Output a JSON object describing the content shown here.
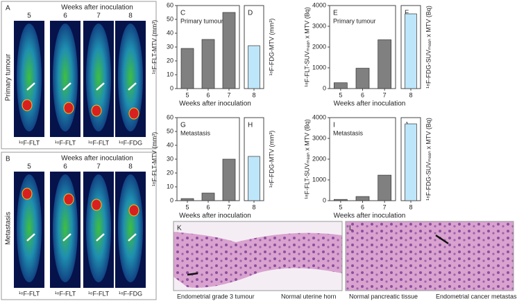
{
  "image_panels": [
    {
      "label": "A",
      "title": "Weeks after inoculation",
      "side_label": "Primary tumour",
      "weeks": [
        "5",
        "6",
        "7",
        "8"
      ],
      "tracers": [
        "¹⁸F-FLT",
        "¹⁸F-FLT",
        "¹⁸F-FLT",
        "¹⁸F-FDG"
      ]
    },
    {
      "label": "B",
      "title": "Weeks after inoculation",
      "side_label": "Metastasis",
      "weeks": [
        "5",
        "6",
        "7",
        "8"
      ],
      "tracers": [
        "¹⁸F-FLT",
        "¹⁸F-FLT",
        "¹⁸F-FLT",
        "¹⁸F-FDG"
      ]
    }
  ],
  "histology": [
    {
      "label": "K",
      "captions": [
        "Endometrial grade 3 tumour",
        "Normal uterine horn"
      ]
    },
    {
      "label": "L",
      "captions": [
        "Normal pancreatic tissue",
        "Endometrial cancer metastasis"
      ]
    }
  ],
  "chart_data": [
    {
      "type": "bar",
      "label": "C",
      "annotation": "Primary tumour",
      "ylabel": "¹⁸F-FLT-MTV (mm³)",
      "xlabel": "Weeks after inoculation",
      "categories": [
        "5",
        "6",
        "7"
      ],
      "values": [
        29,
        35.5,
        55
      ],
      "color": "#808080",
      "ylim": [
        0,
        60
      ],
      "yticks": [
        0,
        10,
        20,
        30,
        40,
        50,
        60
      ]
    },
    {
      "type": "bar",
      "label": "D",
      "ylabel": "¹⁸F-FDG-MTV (mm³)",
      "categories": [
        "8"
      ],
      "values": [
        31
      ],
      "color": "#bde6fa",
      "ylim": [
        0,
        60
      ]
    },
    {
      "type": "bar",
      "label": "E",
      "annotation": "Primary tumour",
      "ylabel": "¹⁸F-FLT-SUVₘₑₐₙ x MTV (Bq)",
      "xlabel": "Weeks after inoculation",
      "categories": [
        "5",
        "6",
        "7"
      ],
      "values": [
        280,
        980,
        2350
      ],
      "color": "#808080",
      "ylim": [
        0,
        4000
      ],
      "yticks": [
        0,
        1000,
        2000,
        3000,
        4000
      ]
    },
    {
      "type": "bar",
      "label": "F",
      "ylabel": "¹⁸F-FDG-SUVₘₑₐₙ x MTV (Bq)",
      "categories": [
        "8"
      ],
      "values": [
        3600
      ],
      "color": "#bde6fa",
      "ylim": [
        0,
        4000
      ]
    },
    {
      "type": "bar",
      "label": "G",
      "annotation": "Metastasis",
      "ylabel": "¹⁸F-FLT-MTV (mm³)",
      "xlabel": "Weeks after inoculation",
      "categories": [
        "5",
        "6",
        "7"
      ],
      "values": [
        1.5,
        5.5,
        30
      ],
      "color": "#808080",
      "ylim": [
        0,
        60
      ],
      "yticks": [
        0,
        10,
        20,
        30,
        40,
        50,
        60
      ]
    },
    {
      "type": "bar",
      "label": "H",
      "ylabel": "¹⁸F-FDG-MTV (mm³)",
      "categories": [
        "8"
      ],
      "values": [
        32
      ],
      "color": "#bde6fa",
      "ylim": [
        0,
        60
      ]
    },
    {
      "type": "bar",
      "label": "I",
      "annotation": "Metastasis",
      "ylabel": "¹⁸F-FLT-SUVₘₑₐₙ x MTV (Bq)",
      "xlabel": "Weeks after inoculation",
      "categories": [
        "5",
        "6",
        "7"
      ],
      "values": [
        60,
        200,
        1230
      ],
      "color": "#808080",
      "ylim": [
        0,
        4000
      ],
      "yticks": [
        0,
        1000,
        2000,
        3000,
        4000
      ]
    },
    {
      "type": "bar",
      "label": "J",
      "ylabel": "¹⁸F-FDG-SUVₘₑₐₙ x MTV (Bq)",
      "categories": [
        "8"
      ],
      "values": [
        3700
      ],
      "color": "#bde6fa",
      "ylim": [
        0,
        4000
      ]
    }
  ]
}
